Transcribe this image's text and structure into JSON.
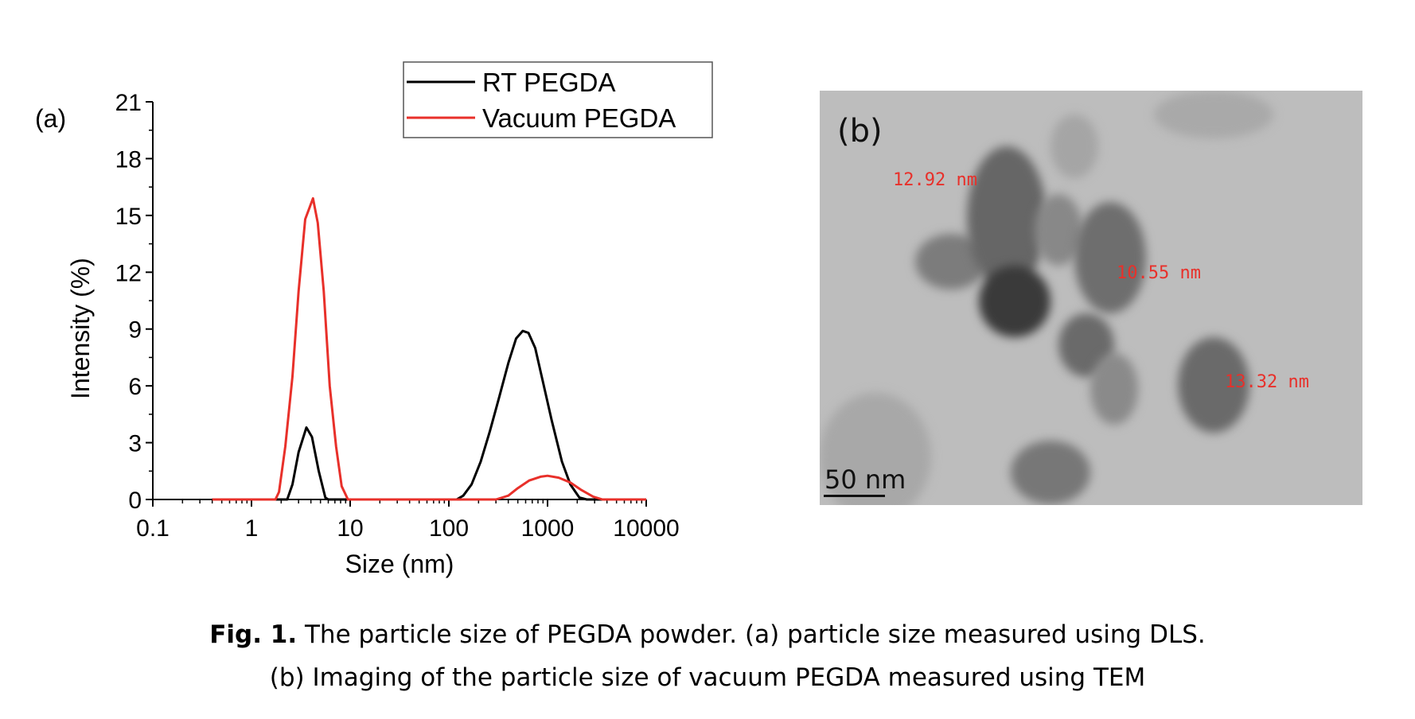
{
  "chart_data": {
    "type": "line",
    "panel_label": "(a)",
    "xlabel": "Size (nm)",
    "ylabel": "Intensity (%)",
    "xscale": "log",
    "xlim": [
      0.1,
      10000
    ],
    "ylim": [
      0,
      21
    ],
    "xticks": [
      "0.1",
      "1",
      "10",
      "100",
      "1000",
      "10000"
    ],
    "xtick_values": [
      0.1,
      1,
      10,
      100,
      1000,
      10000
    ],
    "yticks": [
      "0",
      "3",
      "6",
      "9",
      "12",
      "15",
      "18",
      "21"
    ],
    "ytick_values": [
      0,
      3,
      6,
      9,
      12,
      15,
      18,
      21
    ],
    "grid": false,
    "legend_position": "top-right",
    "series": [
      {
        "name": "RT PEGDA",
        "color": "#000000",
        "points": [
          [
            0.4,
            0
          ],
          [
            2.3,
            0
          ],
          [
            2.6,
            0.8
          ],
          [
            3.0,
            2.5
          ],
          [
            3.6,
            3.8
          ],
          [
            4.1,
            3.3
          ],
          [
            4.8,
            1.5
          ],
          [
            5.6,
            0.1
          ],
          [
            6,
            0
          ],
          [
            120,
            0
          ],
          [
            140,
            0.2
          ],
          [
            170,
            0.8
          ],
          [
            210,
            2
          ],
          [
            260,
            3.6
          ],
          [
            320,
            5.3
          ],
          [
            400,
            7.2
          ],
          [
            480,
            8.5
          ],
          [
            560,
            8.9
          ],
          [
            640,
            8.8
          ],
          [
            750,
            8.0
          ],
          [
            900,
            6.2
          ],
          [
            1100,
            4.2
          ],
          [
            1400,
            2
          ],
          [
            1700,
            0.8
          ],
          [
            2100,
            0.1
          ],
          [
            2500,
            0
          ],
          [
            10000,
            0
          ]
        ]
      },
      {
        "name": "Vacuum PEGDA",
        "color": "#e8302a",
        "points": [
          [
            0.4,
            0
          ],
          [
            1.75,
            0
          ],
          [
            1.9,
            0.4
          ],
          [
            2.2,
            2.8
          ],
          [
            2.6,
            6.5
          ],
          [
            3.0,
            11.0
          ],
          [
            3.5,
            14.8
          ],
          [
            4.2,
            15.9
          ],
          [
            4.7,
            14.6
          ],
          [
            5.4,
            11
          ],
          [
            6.2,
            6
          ],
          [
            7.2,
            2.8
          ],
          [
            8.2,
            0.7
          ],
          [
            9.5,
            0
          ],
          [
            300,
            0
          ],
          [
            400,
            0.2
          ],
          [
            500,
            0.6
          ],
          [
            650,
            1.0
          ],
          [
            850,
            1.2
          ],
          [
            1000,
            1.25
          ],
          [
            1300,
            1.15
          ],
          [
            1700,
            0.9
          ],
          [
            2200,
            0.5
          ],
          [
            2900,
            0.15
          ],
          [
            3600,
            0
          ],
          [
            10000,
            0
          ]
        ]
      }
    ]
  },
  "tem": {
    "panel_label": "(b)",
    "scale_bar": "50 nm",
    "measurements": [
      "12.92 nm",
      "10.55 nm",
      "13.32 nm"
    ]
  },
  "caption": {
    "bold": "Fig. 1.",
    "line1": " The particle size of PEGDA powder. (a) particle size measured using DLS.",
    "line2": "(b) Imaging of the particle size of vacuum PEGDA measured using TEM"
  }
}
